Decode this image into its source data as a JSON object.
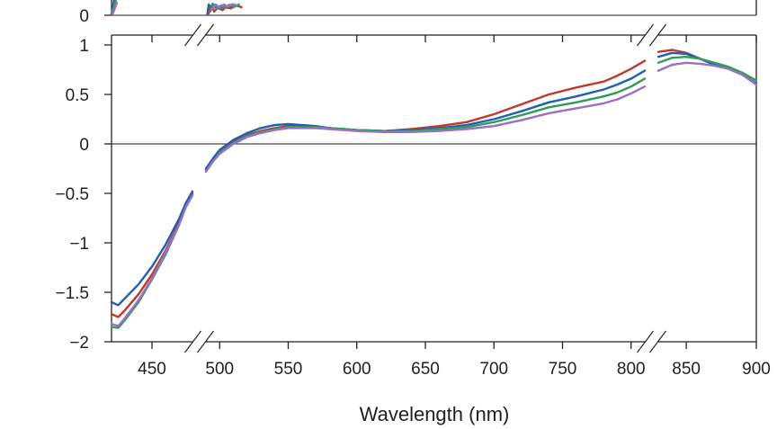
{
  "chart_data": {
    "type": "line",
    "xlabel": "Wavelength (nm)",
    "ylabel": "",
    "title": "",
    "xlim": [
      420,
      900
    ],
    "ylim": [
      -2,
      1
    ],
    "x_ticks": [
      {
        "value": 450,
        "label": "450"
      },
      {
        "value": 500,
        "label": "500"
      },
      {
        "value": 550,
        "label": "550"
      },
      {
        "value": 600,
        "label": "600"
      },
      {
        "value": 650,
        "label": "650"
      },
      {
        "value": 700,
        "label": "700"
      },
      {
        "value": 750,
        "label": "750"
      },
      {
        "value": 800,
        "label": "800"
      },
      {
        "value": 850,
        "label": "850"
      },
      {
        "value": 900,
        "label": "900"
      }
    ],
    "y_ticks": [
      {
        "value": 1,
        "label": "1"
      },
      {
        "value": 0.5,
        "label": "0.5"
      },
      {
        "value": 0,
        "label": "0"
      },
      {
        "value": -0.5,
        "label": "−0.5"
      },
      {
        "value": -1,
        "label": "−1"
      },
      {
        "value": -1.5,
        "label": "−1.5"
      },
      {
        "value": -2,
        "label": "−2"
      }
    ],
    "top_panel": {
      "zero_tick_label": "0"
    },
    "axis_breaks": [
      [
        480,
        490
      ],
      [
        810,
        830
      ]
    ],
    "grid": false,
    "legend": "none",
    "x": [
      420,
      425,
      430,
      440,
      450,
      460,
      470,
      475,
      480,
      490,
      495,
      500,
      510,
      520,
      530,
      540,
      550,
      560,
      570,
      580,
      600,
      620,
      640,
      660,
      680,
      700,
      720,
      740,
      760,
      780,
      790,
      800,
      810,
      830,
      840,
      850,
      860,
      870,
      880,
      890,
      900
    ],
    "series": [
      {
        "color": "#c0392b",
        "values": [
          -1.72,
          -1.75,
          -1.68,
          -1.52,
          -1.32,
          -1.08,
          -0.8,
          -0.62,
          -0.5,
          -0.26,
          -0.16,
          -0.07,
          0.03,
          0.09,
          0.13,
          0.16,
          0.18,
          0.18,
          0.17,
          0.16,
          0.14,
          0.13,
          0.15,
          0.18,
          0.22,
          0.3,
          0.4,
          0.5,
          0.57,
          0.63,
          0.69,
          0.76,
          0.84,
          0.93,
          0.95,
          0.92,
          0.86,
          0.8,
          0.76,
          0.7,
          0.6
        ]
      },
      {
        "color": "#1f5fb4",
        "values": [
          -1.6,
          -1.63,
          -1.56,
          -1.42,
          -1.24,
          -1.02,
          -0.76,
          -0.6,
          -0.48,
          -0.25,
          -0.15,
          -0.06,
          0.04,
          0.11,
          0.16,
          0.19,
          0.2,
          0.19,
          0.18,
          0.16,
          0.14,
          0.13,
          0.14,
          0.16,
          0.19,
          0.25,
          0.33,
          0.42,
          0.48,
          0.55,
          0.6,
          0.66,
          0.74,
          0.88,
          0.92,
          0.91,
          0.86,
          0.8,
          0.76,
          0.7,
          0.61
        ]
      },
      {
        "color": "#2e9e57",
        "values": [
          -1.85,
          -1.86,
          -1.78,
          -1.6,
          -1.37,
          -1.12,
          -0.82,
          -0.64,
          -0.52,
          -0.28,
          -0.18,
          -0.09,
          0.01,
          0.08,
          0.12,
          0.15,
          0.17,
          0.17,
          0.17,
          0.16,
          0.14,
          0.13,
          0.13,
          0.15,
          0.17,
          0.22,
          0.29,
          0.37,
          0.42,
          0.48,
          0.52,
          0.58,
          0.66,
          0.82,
          0.87,
          0.88,
          0.86,
          0.82,
          0.78,
          0.72,
          0.64
        ]
      },
      {
        "color": "#9b6fc7",
        "values": [
          -1.82,
          -1.84,
          -1.76,
          -1.58,
          -1.36,
          -1.1,
          -0.82,
          -0.64,
          -0.52,
          -0.28,
          -0.18,
          -0.1,
          0.0,
          0.07,
          0.11,
          0.14,
          0.16,
          0.16,
          0.16,
          0.15,
          0.13,
          0.12,
          0.12,
          0.13,
          0.15,
          0.18,
          0.24,
          0.31,
          0.36,
          0.41,
          0.45,
          0.51,
          0.58,
          0.74,
          0.8,
          0.82,
          0.81,
          0.79,
          0.76,
          0.7,
          0.6
        ]
      }
    ],
    "top_panel_traces": [
      {
        "color": "#1f5fb4",
        "x": [
          420,
          422
        ],
        "values": [
          0.02,
          0.9
        ]
      },
      {
        "color": "#c0392b",
        "x": [
          420,
          423
        ],
        "values": [
          0.05,
          0.85
        ]
      },
      {
        "color": "#2e9e57",
        "x": [
          420,
          423
        ],
        "values": [
          0.1,
          0.8
        ]
      },
      {
        "color": "#9b6fc7",
        "x": [
          421,
          424
        ],
        "values": [
          0.1,
          0.7
        ]
      },
      {
        "color": "#1f5fb4",
        "x": [
          491,
          492,
          494,
          497,
          500,
          503,
          506,
          510,
          514
        ],
        "values": [
          0.05,
          0.6,
          0.3,
          0.5,
          0.35,
          0.5,
          0.4,
          0.6,
          0.5
        ]
      },
      {
        "color": "#c0392b",
        "x": [
          492,
          494,
          496,
          499,
          502,
          505,
          508,
          512,
          516
        ],
        "values": [
          0.1,
          0.55,
          0.2,
          0.45,
          0.28,
          0.48,
          0.38,
          0.55,
          0.45
        ]
      },
      {
        "color": "#2e9e57",
        "x": [
          493,
          495,
          498,
          501,
          504,
          507,
          510,
          514
        ],
        "values": [
          0.2,
          0.65,
          0.35,
          0.55,
          0.4,
          0.58,
          0.45,
          0.6
        ]
      },
      {
        "color": "#9b6fc7",
        "x": [
          494,
          497,
          500,
          503,
          506,
          509,
          512
        ],
        "values": [
          0.3,
          0.6,
          0.42,
          0.6,
          0.48,
          0.62,
          0.55
        ]
      }
    ]
  }
}
